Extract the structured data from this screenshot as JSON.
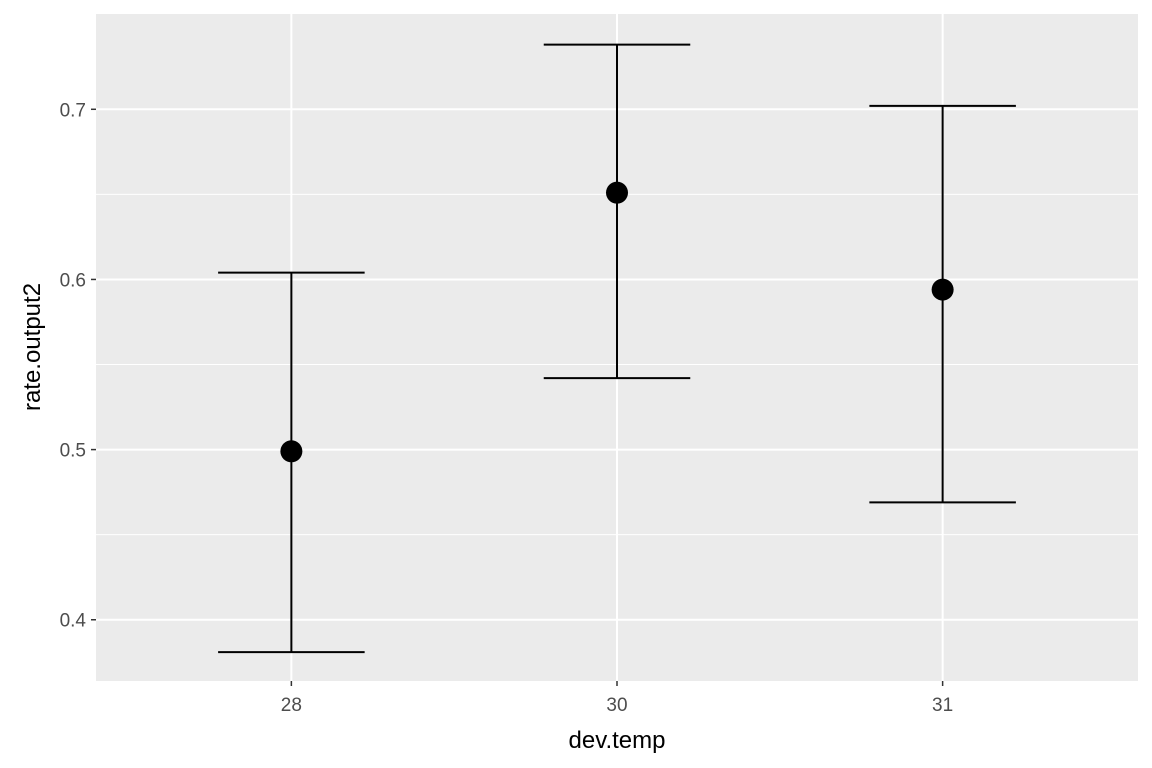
{
  "chart_data": {
    "type": "scatter",
    "subtype": "point-with-errorbars",
    "title": "",
    "xlabel": "dev.temp",
    "ylabel": "rate.output2",
    "categories": [
      "28",
      "30",
      "31"
    ],
    "points": [
      {
        "x": "28",
        "y": 0.499,
        "ymin": 0.381,
        "ymax": 0.604
      },
      {
        "x": "30",
        "y": 0.651,
        "ymin": 0.542,
        "ymax": 0.738
      },
      {
        "x": "31",
        "y": 0.594,
        "ymin": 0.469,
        "ymax": 0.702
      }
    ],
    "ylim": [
      0.364,
      0.756
    ],
    "y_ticks": [
      "0.4",
      "0.5",
      "0.6",
      "0.7"
    ],
    "y_tick_values": [
      0.4,
      0.5,
      0.6,
      0.7
    ],
    "y_minor_tick_values": [
      0.45,
      0.55,
      0.65
    ],
    "grid": true,
    "legend": "none",
    "colors": {
      "panel_background": "#EBEBEB",
      "grid": "#FFFFFF",
      "marks": "#000000",
      "tick_text": "#4D4D4D"
    }
  }
}
